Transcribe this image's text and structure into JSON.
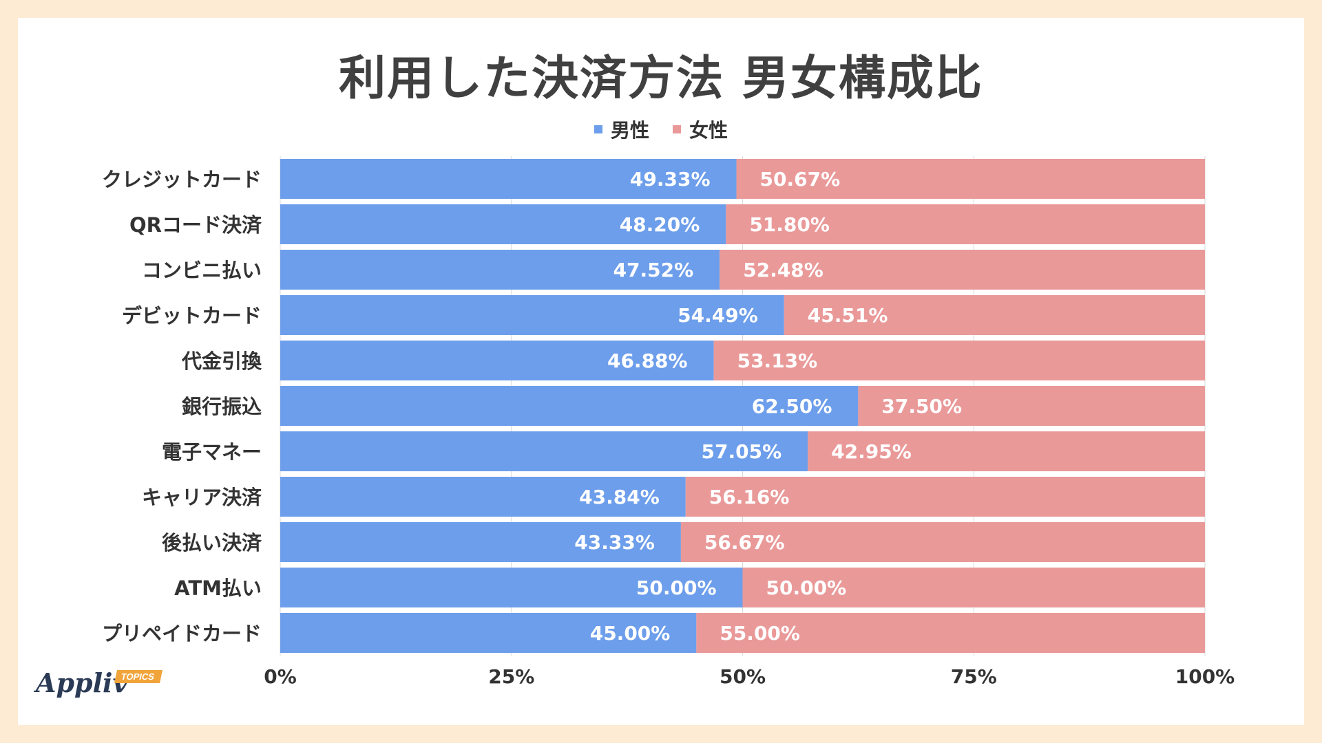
{
  "chart_data": {
    "type": "bar",
    "orientation": "horizontal",
    "stacked": true,
    "title": "利用した決済方法 男女構成比",
    "categories": [
      "クレジットカード",
      "QRコード決済",
      "コンビニ払い",
      "デビットカード",
      "代金引換",
      "銀行振込",
      "電子マネー",
      "キャリア決済",
      "後払い決済",
      "ATM払い",
      "プリペイドカード"
    ],
    "series": [
      {
        "name": "男性",
        "color": "#6d9eeb",
        "values": [
          49.33,
          48.2,
          47.52,
          54.49,
          46.88,
          62.5,
          57.05,
          43.84,
          43.33,
          50.0,
          45.0
        ],
        "labels": [
          "49.33%",
          "48.20%",
          "47.52%",
          "54.49%",
          "46.88%",
          "62.50%",
          "57.05%",
          "43.84%",
          "43.33%",
          "50.00%",
          "45.00%"
        ]
      },
      {
        "name": "女性",
        "color": "#ea9999",
        "values": [
          50.67,
          51.8,
          52.48,
          45.51,
          53.13,
          37.5,
          42.95,
          56.16,
          56.67,
          50.0,
          55.0
        ],
        "labels": [
          "50.67%",
          "51.80%",
          "52.48%",
          "45.51%",
          "53.13%",
          "37.50%",
          "42.95%",
          "56.16%",
          "56.67%",
          "50.00%",
          "55.00%"
        ]
      }
    ],
    "xlim": [
      0,
      100
    ],
    "xticks": [
      0,
      25,
      50,
      75,
      100
    ],
    "xtick_labels": [
      "0%",
      "25%",
      "50%",
      "75%",
      "100%"
    ],
    "grid": true,
    "legend": "top-center"
  },
  "logo": {
    "text": "Appliv",
    "tag": "TOPICS"
  }
}
